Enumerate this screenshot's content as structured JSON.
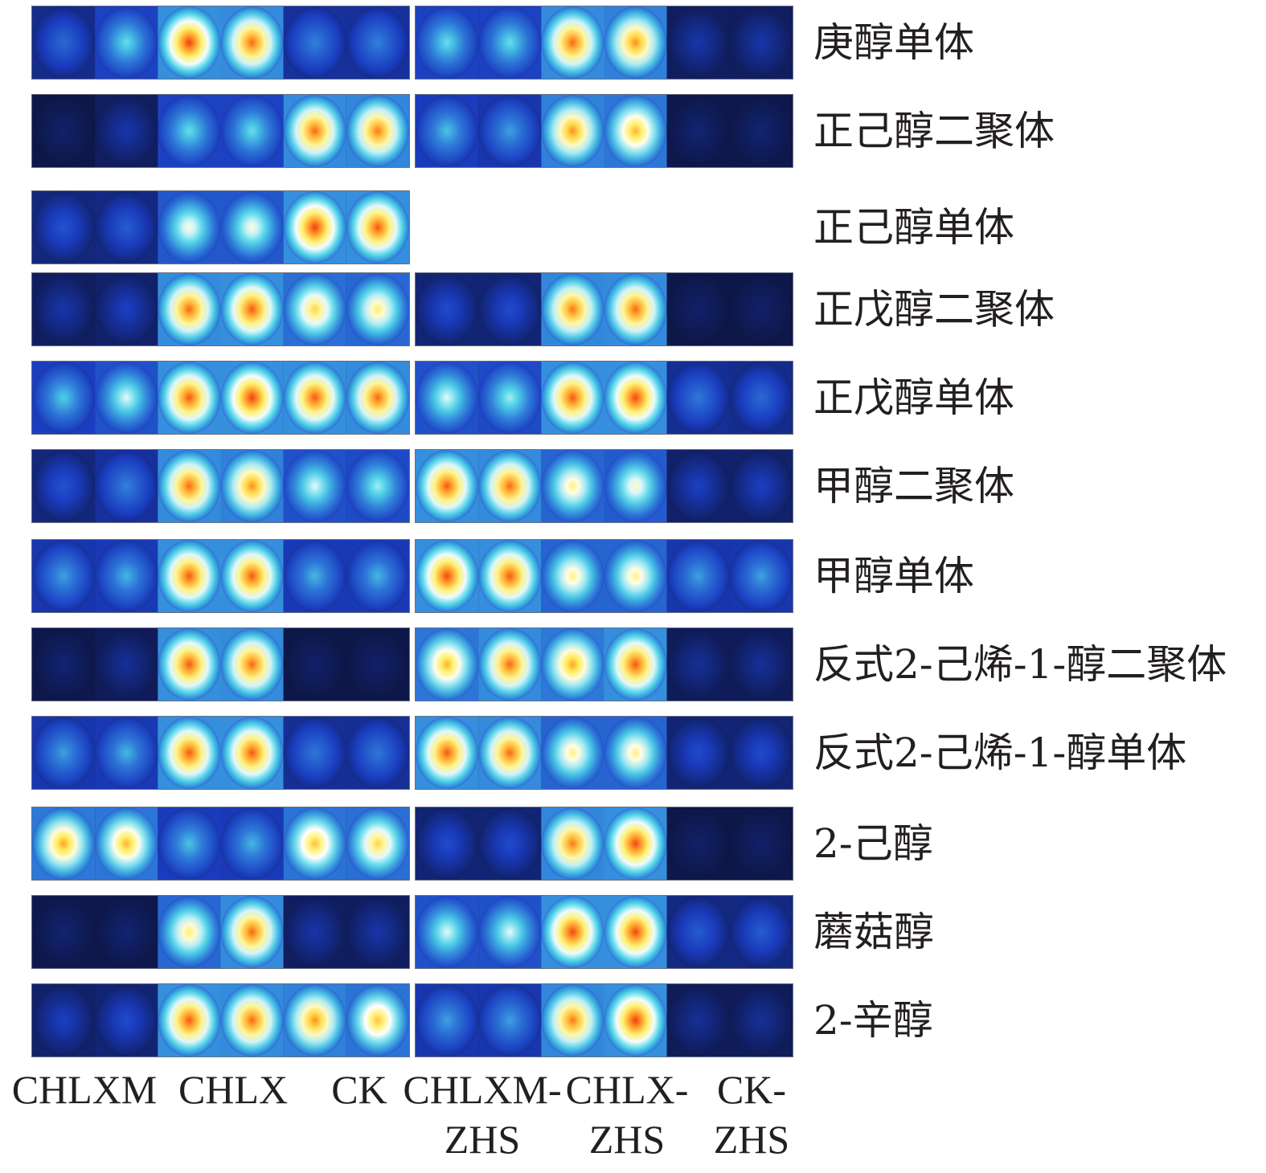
{
  "chart_data": {
    "type": "heatmap",
    "title": "",
    "colormap": [
      "#0c1238",
      "#1a3cc0",
      "#2e78d8",
      "#4fd6e8",
      "#ffffff",
      "#ffef5a",
      "#ff8a1e",
      "#e8160f"
    ],
    "groups": [
      {
        "name": "CHLXM",
        "subcolumns": 2
      },
      {
        "name": "CHLX",
        "subcolumns": 2
      },
      {
        "name": "CK",
        "subcolumns": 2
      },
      {
        "name": "CHLXM-\nZHS",
        "subcolumns": 2
      },
      {
        "name": "CHLX-\nZHS",
        "subcolumns": 2
      },
      {
        "name": "CK-\nZHS",
        "subcolumns": 2
      }
    ],
    "rows": [
      {
        "name": "庚醇单体",
        "values": [
          0.25,
          0.45,
          0.95,
          0.9,
          0.3,
          0.3,
          0.45,
          0.45,
          0.9,
          0.85,
          0.12,
          0.12
        ]
      },
      {
        "name": "正己醇二聚体",
        "values": [
          0.05,
          0.12,
          0.45,
          0.45,
          0.9,
          0.88,
          0.4,
          0.35,
          0.85,
          0.8,
          0.06,
          0.06
        ]
      },
      {
        "name": "正己醇单体",
        "values": [
          0.2,
          0.22,
          0.6,
          0.6,
          0.95,
          0.92,
          null,
          null,
          null,
          null,
          null,
          null
        ]
      },
      {
        "name": "正戊醇二聚体",
        "values": [
          0.12,
          0.15,
          0.9,
          0.92,
          0.75,
          0.7,
          0.18,
          0.18,
          0.88,
          0.9,
          0.05,
          0.05
        ]
      },
      {
        "name": "正戊醇单体",
        "values": [
          0.42,
          0.55,
          0.92,
          0.95,
          0.92,
          0.9,
          0.55,
          0.5,
          0.92,
          0.94,
          0.28,
          0.25
        ]
      },
      {
        "name": "甲醇二聚体",
        "values": [
          0.2,
          0.3,
          0.9,
          0.85,
          0.55,
          0.5,
          0.92,
          0.9,
          0.68,
          0.62,
          0.15,
          0.15
        ]
      },
      {
        "name": "甲醇单体",
        "values": [
          0.35,
          0.38,
          0.92,
          0.92,
          0.38,
          0.38,
          0.94,
          0.92,
          0.68,
          0.68,
          0.35,
          0.35
        ]
      },
      {
        "name": "反式2-己烯-1-醇二聚体",
        "values": [
          0.06,
          0.1,
          0.92,
          0.9,
          0.05,
          0.05,
          0.8,
          0.9,
          0.82,
          0.92,
          0.1,
          0.1
        ]
      },
      {
        "name": "反式2-己烯-1-醇单体",
        "values": [
          0.35,
          0.38,
          0.92,
          0.92,
          0.28,
          0.28,
          0.92,
          0.9,
          0.68,
          0.68,
          0.18,
          0.18
        ]
      },
      {
        "name": "2-己醇",
        "values": [
          0.82,
          0.8,
          0.4,
          0.38,
          0.78,
          0.75,
          0.18,
          0.18,
          0.88,
          0.94,
          0.05,
          0.05
        ]
      },
      {
        "name": "蘑菇醇",
        "values": [
          0.06,
          0.06,
          0.7,
          0.9,
          0.12,
          0.12,
          0.55,
          0.55,
          0.94,
          0.94,
          0.22,
          0.22
        ]
      },
      {
        "name": "2-辛醇",
        "values": [
          0.15,
          0.18,
          0.92,
          0.9,
          0.85,
          0.78,
          0.35,
          0.35,
          0.88,
          0.95,
          0.1,
          0.1
        ]
      }
    ]
  }
}
